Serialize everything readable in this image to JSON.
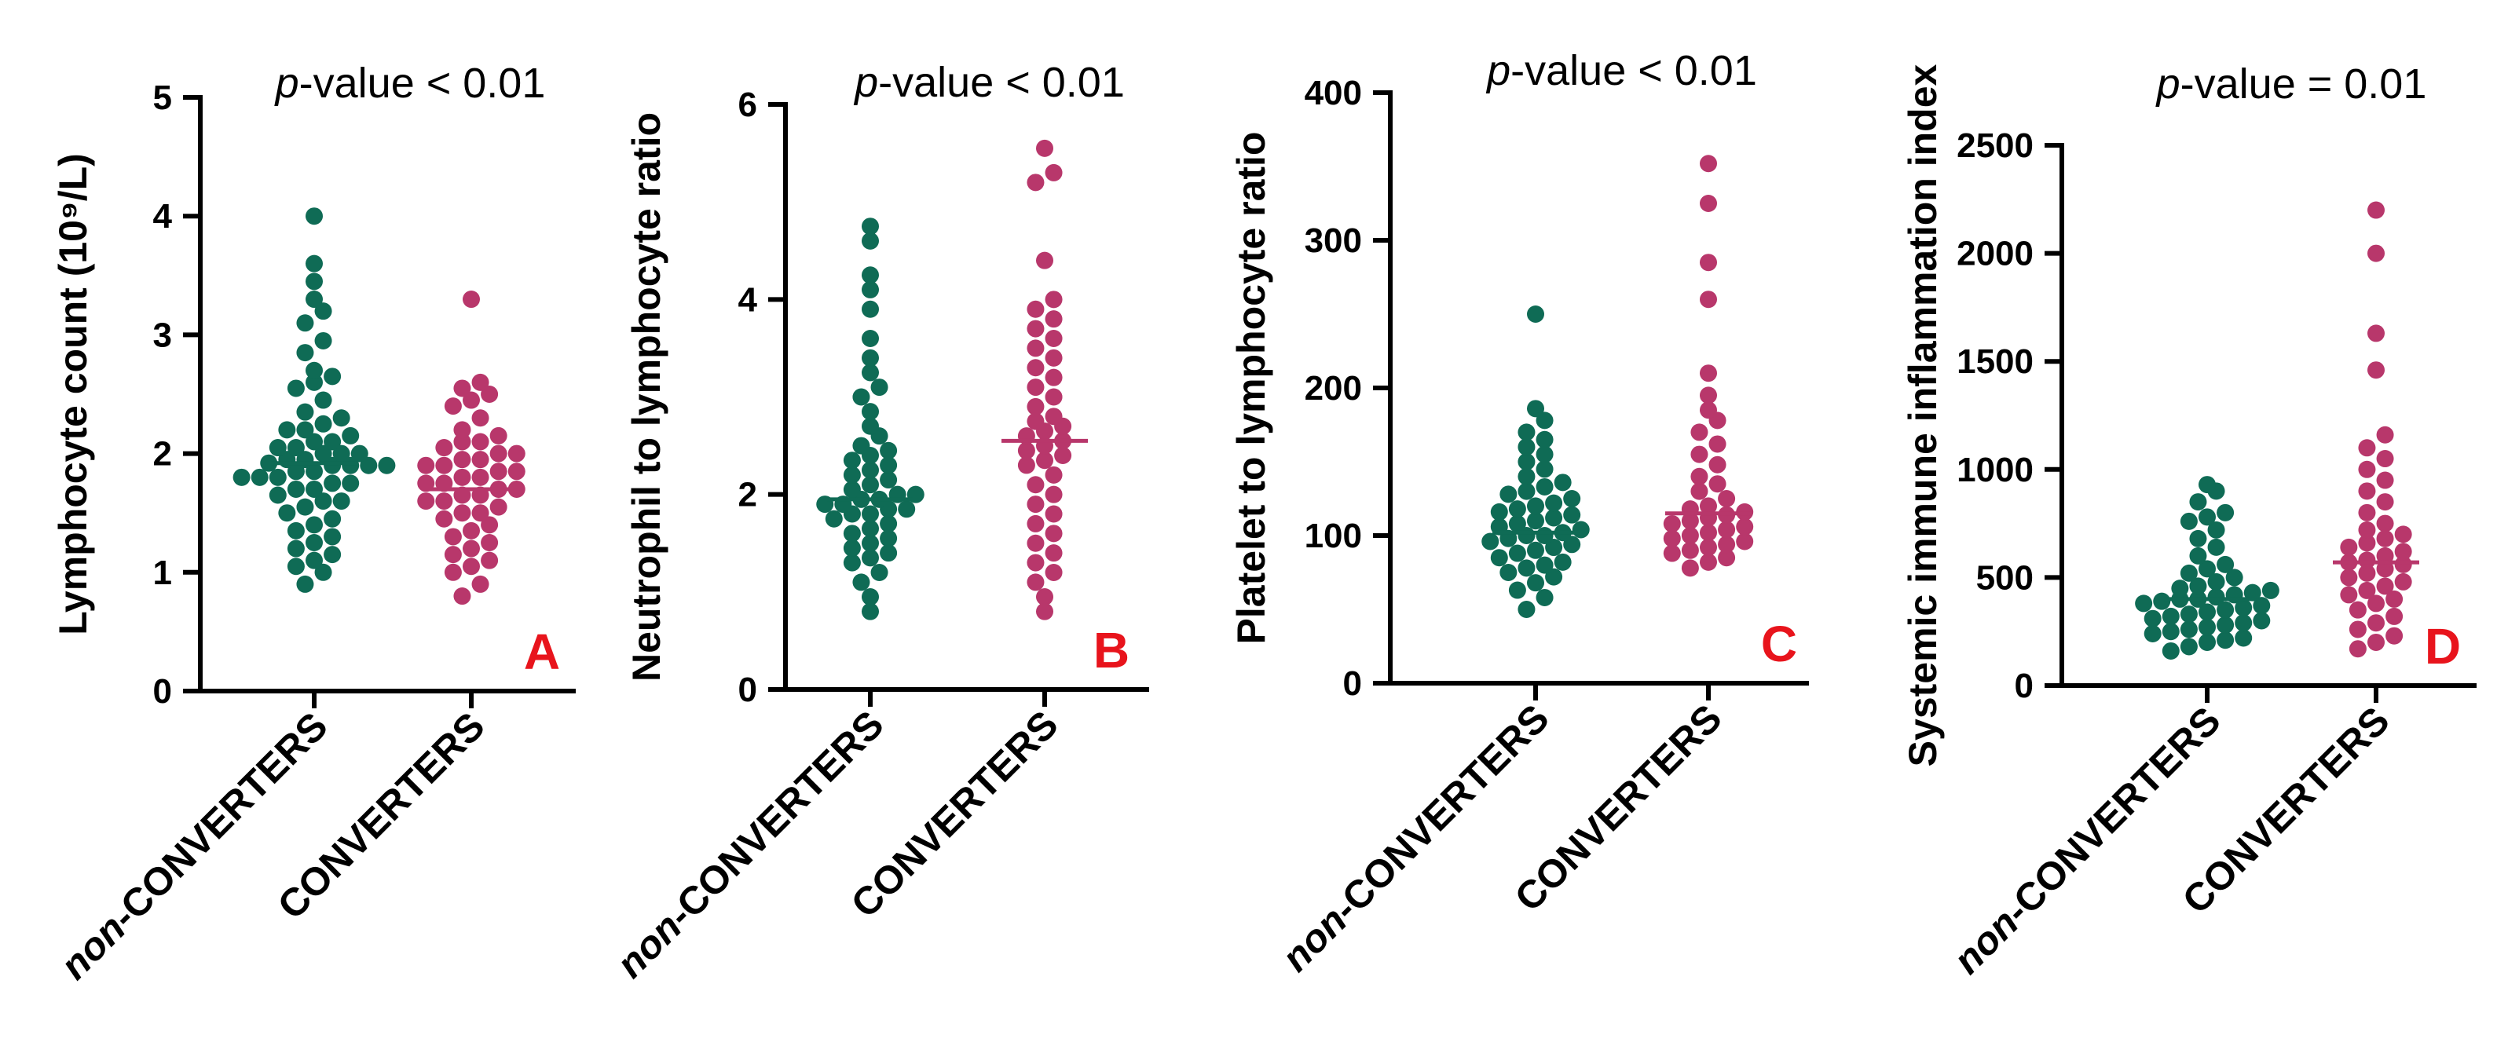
{
  "colors": {
    "non_converters": "#0f6b55",
    "converters": "#b8376b",
    "panel_letter": "#e8141c"
  },
  "chart_data": [
    {
      "type": "scatter",
      "panel": "A",
      "ylabel": "Lymphocyte count (10⁹/L)",
      "p_value": {
        "prefix": "p",
        "text": "-value < 0.01"
      },
      "ylim": [
        0,
        5
      ],
      "yticks": [
        "0",
        "1",
        "2",
        "3",
        "4",
        "5"
      ],
      "categories": [
        {
          "name": "non-CONVERTERS",
          "italic_prefix": "non",
          "rest": "-CONVERTERS",
          "median": 1.92,
          "values": [
            0.9,
            1.0,
            1.05,
            1.1,
            1.15,
            1.2,
            1.25,
            1.3,
            1.35,
            1.4,
            1.45,
            1.5,
            1.55,
            1.6,
            1.6,
            1.65,
            1.7,
            1.7,
            1.75,
            1.75,
            1.8,
            1.8,
            1.8,
            1.85,
            1.85,
            1.9,
            1.9,
            1.9,
            1.9,
            1.92,
            1.95,
            1.95,
            2.0,
            2.0,
            2.0,
            2.05,
            2.05,
            2.1,
            2.1,
            2.15,
            2.2,
            2.2,
            2.25,
            2.3,
            2.35,
            2.45,
            2.55,
            2.6,
            2.65,
            2.7,
            2.85,
            2.95,
            3.1,
            3.2,
            3.3,
            3.45,
            3.6,
            4.0
          ]
        },
        {
          "name": "CONVERTERS",
          "italic_prefix": "",
          "rest": "CONVERTERS",
          "median": 1.7,
          "values": [
            0.8,
            0.9,
            1.0,
            1.05,
            1.1,
            1.15,
            1.2,
            1.25,
            1.3,
            1.35,
            1.4,
            1.45,
            1.5,
            1.5,
            1.55,
            1.6,
            1.6,
            1.65,
            1.65,
            1.7,
            1.7,
            1.75,
            1.75,
            1.8,
            1.8,
            1.85,
            1.85,
            1.9,
            1.9,
            1.95,
            1.95,
            2.0,
            2.0,
            2.05,
            2.1,
            2.1,
            2.15,
            2.2,
            2.3,
            2.4,
            2.45,
            2.5,
            2.55,
            2.6,
            3.3
          ]
        }
      ]
    },
    {
      "type": "scatter",
      "panel": "B",
      "ylabel": "Neutrophil to lymphocyte ratio",
      "p_value": {
        "prefix": "p",
        "text": "-value < 0.01"
      },
      "ylim": [
        0,
        6
      ],
      "yticks": [
        "0",
        "2",
        "4",
        "6"
      ],
      "categories": [
        {
          "name": "non-CONVERTERS",
          "italic_prefix": "non",
          "rest": "-CONVERTERS",
          "median": 1.95,
          "values": [
            0.8,
            0.95,
            1.1,
            1.2,
            1.3,
            1.35,
            1.4,
            1.45,
            1.5,
            1.55,
            1.6,
            1.65,
            1.7,
            1.75,
            1.8,
            1.8,
            1.85,
            1.85,
            1.9,
            1.9,
            1.95,
            1.95,
            2.0,
            2.0,
            2.05,
            2.1,
            2.15,
            2.2,
            2.25,
            2.3,
            2.35,
            2.4,
            2.45,
            2.5,
            2.6,
            2.7,
            2.85,
            3.0,
            3.1,
            3.25,
            3.4,
            3.6,
            3.9,
            4.1,
            4.25,
            4.6,
            4.75
          ]
        },
        {
          "name": "CONVERTERS",
          "italic_prefix": "",
          "rest": "CONVERTERS",
          "median": 2.55,
          "values": [
            0.8,
            0.95,
            1.1,
            1.2,
            1.3,
            1.4,
            1.5,
            1.6,
            1.7,
            1.8,
            1.9,
            2.0,
            2.1,
            2.2,
            2.3,
            2.35,
            2.4,
            2.45,
            2.5,
            2.55,
            2.6,
            2.65,
            2.7,
            2.75,
            2.8,
            2.9,
            3.0,
            3.1,
            3.2,
            3.3,
            3.4,
            3.5,
            3.6,
            3.7,
            3.8,
            3.9,
            4.0,
            4.4,
            5.2,
            5.3,
            5.55
          ]
        }
      ]
    },
    {
      "type": "scatter",
      "panel": "C",
      "ylabel": "Platelet to lymphocyte ratio",
      "p_value": {
        "prefix": "p",
        "text": "-value < 0.01"
      },
      "ylim": [
        0,
        400
      ],
      "yticks": [
        "0",
        "100",
        "200",
        "300",
        "400"
      ],
      "categories": [
        {
          "name": "non-CONVERTERS",
          "italic_prefix": "non",
          "rest": "-CONVERTERS",
          "median": 102,
          "values": [
            50,
            58,
            63,
            68,
            72,
            75,
            78,
            80,
            82,
            85,
            88,
            90,
            92,
            94,
            96,
            98,
            100,
            100,
            102,
            104,
            106,
            108,
            110,
            112,
            114,
            116,
            118,
            120,
            122,
            125,
            128,
            130,
            133,
            136,
            140,
            145,
            150,
            155,
            160,
            165,
            170,
            178,
            186,
            250
          ]
        },
        {
          "name": "CONVERTERS",
          "italic_prefix": "",
          "rest": "CONVERTERS",
          "median": 115,
          "values": [
            78,
            82,
            85,
            88,
            90,
            92,
            94,
            96,
            98,
            100,
            102,
            104,
            106,
            108,
            110,
            112,
            114,
            116,
            118,
            120,
            125,
            130,
            135,
            140,
            148,
            155,
            162,
            170,
            178,
            185,
            195,
            210,
            260,
            285,
            325,
            352
          ]
        }
      ]
    },
    {
      "type": "scatter",
      "panel": "D",
      "ylabel": "Systemic immune inflammation index",
      "p_value": {
        "prefix": "p",
        "text": "-value = 0.01"
      },
      "ylim": [
        0,
        2500
      ],
      "yticks": [
        "0",
        "500",
        "1000",
        "1500",
        "2000",
        "2500"
      ],
      "categories": [
        {
          "name": "non-CONVERTERS",
          "italic_prefix": "non",
          "rest": "-CONVERTERS",
          "median": 400,
          "values": [
            160,
            180,
            200,
            210,
            220,
            240,
            250,
            260,
            270,
            280,
            290,
            300,
            310,
            320,
            330,
            340,
            350,
            360,
            370,
            380,
            390,
            400,
            400,
            410,
            420,
            430,
            440,
            450,
            460,
            480,
            500,
            520,
            540,
            560,
            600,
            640,
            680,
            720,
            760,
            780,
            800,
            850,
            900,
            930
          ]
        },
        {
          "name": "CONVERTERS",
          "italic_prefix": "",
          "rest": "CONVERTERS",
          "median": 570,
          "values": [
            170,
            200,
            230,
            260,
            290,
            320,
            350,
            380,
            400,
            420,
            440,
            460,
            480,
            500,
            520,
            540,
            560,
            570,
            580,
            600,
            620,
            640,
            660,
            680,
            700,
            720,
            750,
            800,
            850,
            900,
            950,
            1000,
            1050,
            1100,
            1160,
            1460,
            1630,
            2000,
            2200
          ]
        }
      ]
    }
  ]
}
